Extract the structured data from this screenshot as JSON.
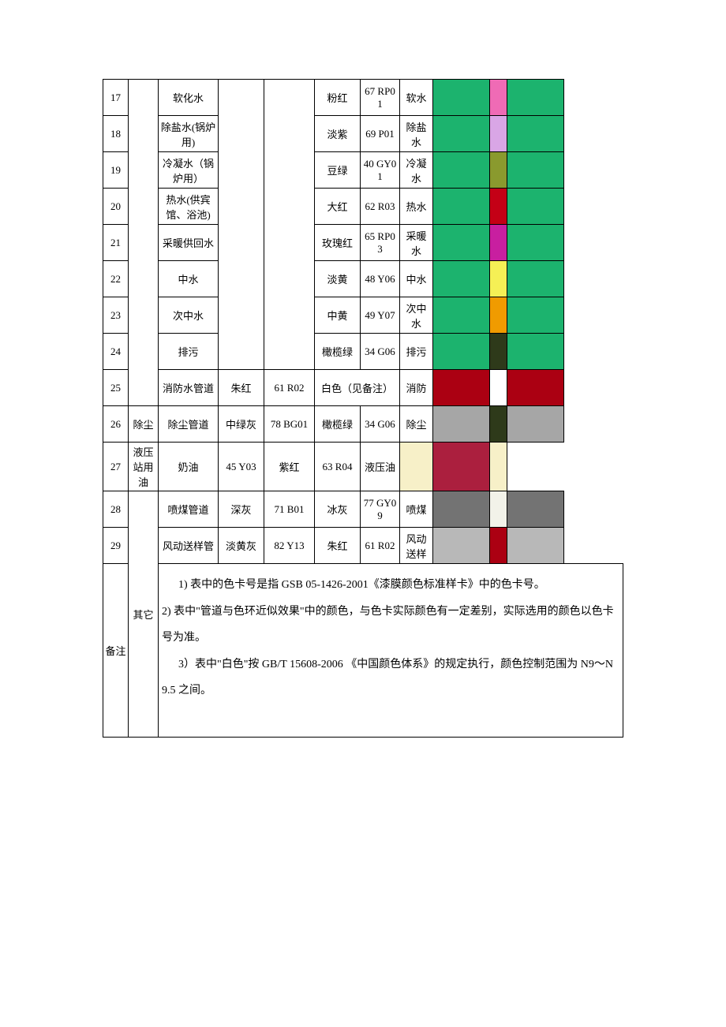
{
  "table": {
    "rows": [
      {
        "num": "17",
        "name": "软化水",
        "base_name": "",
        "base_code": "",
        "ring_name": "粉红",
        "ring_code": "67 RP01",
        "label": "软水",
        "base_color": "#1cb36e",
        "ring_color": "#ef6bb5",
        "end_color": "#1cb36e"
      },
      {
        "num": "18",
        "name": "除盐水(锅炉用)",
        "base_name": "",
        "base_code": "",
        "ring_name": "淡紫",
        "ring_code": "69 P01",
        "label": "除盐水",
        "base_color": "#1cb36e",
        "ring_color": "#d9a6e6",
        "end_color": "#1cb36e"
      },
      {
        "num": "19",
        "name": "冷凝水（锅炉用）",
        "base_name": "",
        "base_code": "",
        "ring_name": "豆绿",
        "ring_code": "40 GY01",
        "label": "冷凝水",
        "base_color": "#1cb36e",
        "ring_color": "#8a9a2e",
        "end_color": "#1cb36e"
      },
      {
        "num": "20",
        "name": "热水(供宾馆、浴池)",
        "base_name": "",
        "base_code": "",
        "ring_name": "大红",
        "ring_code": "62 R03",
        "label": "热水",
        "base_color": "#1cb36e",
        "ring_color": "#c40016",
        "end_color": "#1cb36e"
      },
      {
        "num": "21",
        "name": "采暖供回水",
        "base_name": "",
        "base_code": "",
        "ring_name": "玫瑰红",
        "ring_code": "65 RP03",
        "label": "采暖水",
        "base_color": "#1cb36e",
        "ring_color": "#c81fa0",
        "end_color": "#1cb36e"
      },
      {
        "num": "22",
        "name": "中水",
        "base_name": "",
        "base_code": "",
        "ring_name": "淡黄",
        "ring_code": "48 Y06",
        "label": "中水",
        "base_color": "#1cb36e",
        "ring_color": "#f5f055",
        "end_color": "#1cb36e"
      },
      {
        "num": "23",
        "name": "次中水",
        "base_name": "",
        "base_code": "",
        "ring_name": "中黄",
        "ring_code": "49 Y07",
        "label": "次中水",
        "base_color": "#1cb36e",
        "ring_color": "#f09b00",
        "end_color": "#1cb36e"
      },
      {
        "num": "24",
        "name": "排污",
        "base_name": "",
        "base_code": "",
        "ring_name": "橄榄绿",
        "ring_code": "34 G06",
        "label": "排污",
        "base_color": "#1cb36e",
        "ring_color": "#2e3a1a",
        "end_color": "#1cb36e"
      },
      {
        "num": "25",
        "name": "消防水管道",
        "base_name": "朱红",
        "base_code": "61 R02",
        "ring_name_merged": "白色（见备注）",
        "label": "消防",
        "base_color": "#ab0012",
        "ring_color": "#ffffff",
        "end_color": "#ab0012",
        "merge56": true
      },
      {
        "num": "26",
        "cat": "除尘",
        "name": "除尘管道",
        "base_name": "中绿灰",
        "base_code": "78 BG01",
        "ring_name": "橄榄绿",
        "ring_code": "34 G06",
        "label": "除尘",
        "base_color": "#a6a6a6",
        "ring_color": "#2e3a1a",
        "end_color": "#a6a6a6",
        "own_cat": true
      },
      {
        "num": "27",
        "name": "液压站用油",
        "base_name": "奶油",
        "base_code": "45 Y03",
        "ring_name": "紫红",
        "ring_code": "63 R04",
        "label": "液压油",
        "base_color": "#f7f0c8",
        "ring_color": "#ab1f3e",
        "end_color": "#f7f0c8"
      },
      {
        "num": "28",
        "cat": "其它",
        "name": "喷煤管道",
        "base_name": "深灰",
        "base_code": "71 B01",
        "ring_name": "冰灰",
        "ring_code": "77 GY09",
        "label": "喷煤",
        "base_color": "#737373",
        "ring_color": "#f2f2e9",
        "end_color": "#737373",
        "cat_span": 3
      },
      {
        "num": "29",
        "name": "风动送样管",
        "base_name": "淡黄灰",
        "base_code": "82 Y13",
        "ring_name": "朱红",
        "ring_code": "61 R02",
        "label": "风动送样",
        "base_color": "#b8b8b8",
        "ring_color": "#ab0012",
        "end_color": "#b8b8b8"
      }
    ],
    "notes_label": "备注",
    "notes_body": "1) 表中的色卡号是指 GSB 05-1426-2001《漆膜颜色标准样卡》中的色卡号。\n2) 表中\"管道与色环近似效果\"中的颜色，与色卡实际颜色有一定差别，实际选用的颜色以色卡号为准。\n3）表中\"白色\"按 GB/T 15608-2006  《中国颜色体系》的规定执行，颜色控制范围为 N9～N9.5 之间。"
  }
}
